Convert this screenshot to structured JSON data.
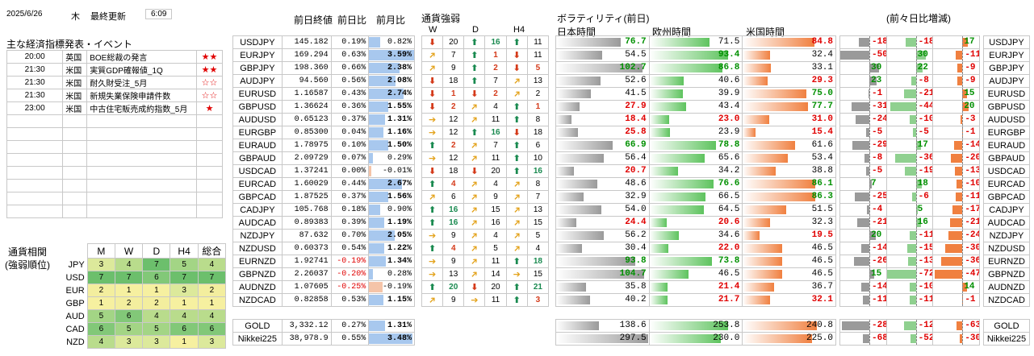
{
  "header": {
    "date": "2025/6/26",
    "weekday": "木",
    "update_label": "最終更新",
    "update_time": "6:09"
  },
  "events": {
    "title": "主な経済指標発表・イベント",
    "rows": [
      {
        "time": "20:00",
        "country": "英国",
        "name": "BOE総裁の発言",
        "stars": "★★"
      },
      {
        "time": "21:30",
        "country": "米国",
        "name": "実質GDP確報値_1Q",
        "stars": "★★"
      },
      {
        "time": "21:30",
        "country": "米国",
        "name": "耐久財受注_5月",
        "stars": "☆☆"
      },
      {
        "time": "21:30",
        "country": "米国",
        "name": "新規失業保険申請件数",
        "stars": "☆☆"
      },
      {
        "time": "23:00",
        "country": "米国",
        "name": "中古住宅販売成約指数_5月",
        "stars": "★"
      }
    ]
  },
  "corr": {
    "title1": "通貨相関",
    "title2": "(強弱順位)",
    "headers": [
      "M",
      "W",
      "D",
      "H4",
      "総合"
    ],
    "rows": [
      {
        "cur": "JPY",
        "vals": [
          "3",
          "4",
          "7",
          "5",
          "4"
        ]
      },
      {
        "cur": "USD",
        "vals": [
          "7",
          "7",
          "6",
          "7",
          "7"
        ]
      },
      {
        "cur": "EUR",
        "vals": [
          "2",
          "1",
          "1",
          "3",
          "2"
        ]
      },
      {
        "cur": "GBP",
        "vals": [
          "1",
          "2",
          "2",
          "1",
          "1"
        ]
      },
      {
        "cur": "AUD",
        "vals": [
          "5",
          "6",
          "4",
          "4",
          "4"
        ]
      },
      {
        "cur": "CAD",
        "vals": [
          "6",
          "5",
          "5",
          "6",
          "6"
        ]
      },
      {
        "cur": "NZD",
        "vals": [
          "4",
          "3",
          "3",
          "1",
          "3"
        ]
      }
    ]
  },
  "price_headers": {
    "close": "前日終値",
    "dchg": "前日比",
    "mchg": "前月比"
  },
  "strength_headers": {
    "title": "通貨強弱",
    "w": "W",
    "d": "D",
    "h4": "H4"
  },
  "vol_headers": {
    "title": "ボラティリティ(前日)",
    "jp": "日本時間",
    "eu": "欧州時間",
    "us": "米国時間",
    "chg": "(前々日比増減)"
  },
  "pairs": [
    {
      "sym": "USDJPY",
      "close": "145.182",
      "d": "0.19%",
      "m": "0.82%",
      "mt": 0.25,
      "s": [
        "dn",
        "20",
        "up",
        "16",
        "up",
        "11"
      ],
      "v": [
        "76.7",
        "71.5",
        "84.8"
      ],
      "vt": [
        "g",
        "n",
        "r"
      ],
      "c": [
        "-18",
        "-18",
        "17"
      ]
    },
    {
      "sym": "EURJPY",
      "close": "169.294",
      "d": "0.63%",
      "m": "3.59%",
      "mt": 1.0,
      "s": [
        "ri",
        "7",
        "up",
        "1",
        "dn",
        "11"
      ],
      "v": [
        "54.5",
        "93.4",
        "32.4"
      ],
      "vt": [
        "n",
        "g",
        "n"
      ],
      "c": [
        "-50",
        "30",
        "-11"
      ]
    },
    {
      "sym": "GBPJPY",
      "close": "198.360",
      "d": "0.66%",
      "m": "2.38%",
      "mt": 0.67,
      "s": [
        "ri",
        "9",
        "up",
        "2",
        "dn",
        "5"
      ],
      "v": [
        "102.7",
        "86.8",
        "33.1"
      ],
      "vt": [
        "g",
        "g",
        "n"
      ],
      "c": [
        "30",
        "22",
        "-9"
      ]
    },
    {
      "sym": "AUDJPY",
      "close": "94.560",
      "d": "0.56%",
      "m": "2.08%",
      "mt": 0.58,
      "s": [
        "dn",
        "18",
        "up",
        "7",
        "ri",
        "13"
      ],
      "v": [
        "52.6",
        "40.6",
        "29.3"
      ],
      "vt": [
        "n",
        "n",
        "r"
      ],
      "c": [
        "23",
        "-8",
        "-9"
      ]
    },
    {
      "sym": "EURUSD",
      "close": "1.16587",
      "d": "0.43%",
      "m": "2.74%",
      "mt": 0.76,
      "s": [
        "dn",
        "1",
        "dn",
        "2",
        "ri",
        "2"
      ],
      "v": [
        "41.5",
        "39.9",
        "75.0"
      ],
      "vt": [
        "n",
        "n",
        "g"
      ],
      "c": [
        "-1",
        "-21",
        "15"
      ]
    },
    {
      "sym": "GBPUSD",
      "close": "1.36624",
      "d": "0.36%",
      "m": "1.55%",
      "mt": 0.43,
      "s": [
        "dn",
        "2",
        "ri",
        "4",
        "up",
        "1"
      ],
      "v": [
        "27.9",
        "43.4",
        "77.7"
      ],
      "vt": [
        "r",
        "n",
        "g"
      ],
      "c": [
        "-31",
        "-44",
        "20"
      ]
    },
    {
      "sym": "AUDUSD",
      "close": "0.65123",
      "d": "0.37%",
      "m": "1.31%",
      "mt": 0.36,
      "s": [
        "rt",
        "12",
        "ri",
        "11",
        "up",
        "8"
      ],
      "v": [
        "18.4",
        "23.0",
        "31.0"
      ],
      "vt": [
        "r",
        "r",
        "r"
      ],
      "c": [
        "-24",
        "-10",
        "-3"
      ]
    },
    {
      "sym": "EURGBP",
      "close": "0.85300",
      "d": "0.04%",
      "m": "1.16%",
      "mt": 0.32,
      "s": [
        "rt",
        "12",
        "up",
        "16",
        "dn",
        "18"
      ],
      "v": [
        "25.8",
        "23.9",
        "15.4"
      ],
      "vt": [
        "r",
        "n",
        "r"
      ],
      "c": [
        "-5",
        "-5",
        "-1"
      ]
    },
    {
      "sym": "EURAUD",
      "close": "1.78975",
      "d": "0.10%",
      "m": "1.50%",
      "mt": 0.42,
      "s": [
        "up",
        "2",
        "ri",
        "7",
        "up",
        "6"
      ],
      "v": [
        "66.9",
        "78.8",
        "61.6"
      ],
      "vt": [
        "g",
        "g",
        "n"
      ],
      "c": [
        "-29",
        "17",
        "-14"
      ]
    },
    {
      "sym": "GBPAUD",
      "close": "2.09729",
      "d": "0.07%",
      "m": "0.29%",
      "mt": 0.08,
      "s": [
        "rt",
        "12",
        "ri",
        "11",
        "up",
        "10"
      ],
      "v": [
        "56.4",
        "65.6",
        "53.4"
      ],
      "vt": [
        "n",
        "n",
        "n"
      ],
      "c": [
        "-8",
        "-36",
        "-20"
      ]
    },
    {
      "sym": "USDCAD",
      "close": "1.37241",
      "d": "0.00%",
      "m": "-0.01%",
      "mt": -0.05,
      "s": [
        "dn",
        "18",
        "dn",
        "20",
        "up",
        "16"
      ],
      "v": [
        "20.7",
        "34.2",
        "38.8"
      ],
      "vt": [
        "r",
        "n",
        "n"
      ],
      "c": [
        "-5",
        "-19",
        "-13"
      ]
    },
    {
      "sym": "EURCAD",
      "close": "1.60029",
      "d": "0.44%",
      "m": "2.67%",
      "mt": 0.74,
      "s": [
        "up",
        "4",
        "ri",
        "4",
        "ri",
        "8"
      ],
      "v": [
        "48.6",
        "76.6",
        "86.1"
      ],
      "vt": [
        "n",
        "g",
        "g"
      ],
      "c": [
        "7",
        "18",
        "-10"
      ]
    },
    {
      "sym": "GBPCAD",
      "close": "1.87525",
      "d": "0.37%",
      "m": "1.56%",
      "mt": 0.43,
      "s": [
        "ri",
        "6",
        "ri",
        "9",
        "ri",
        "7"
      ],
      "v": [
        "32.9",
        "66.5",
        "86.3"
      ],
      "vt": [
        "n",
        "n",
        "g"
      ],
      "c": [
        "-25",
        "-6",
        "-11"
      ]
    },
    {
      "sym": "CADJPY",
      "close": "105.768",
      "d": "0.18%",
      "m": "0.90%",
      "mt": 0.25,
      "s": [
        "up",
        "16",
        "ri",
        "15",
        "ri",
        "13"
      ],
      "v": [
        "54.0",
        "64.5",
        "51.5"
      ],
      "vt": [
        "n",
        "n",
        "n"
      ],
      "c": [
        "-4",
        "5",
        "-17"
      ]
    },
    {
      "sym": "AUDCAD",
      "close": "0.89383",
      "d": "0.39%",
      "m": "1.19%",
      "mt": 0.33,
      "s": [
        "up",
        "16",
        "ri",
        "16",
        "ri",
        "15"
      ],
      "v": [
        "24.4",
        "20.6",
        "32.3"
      ],
      "vt": [
        "r",
        "r",
        "n"
      ],
      "c": [
        "-21",
        "16",
        "-21"
      ]
    },
    {
      "sym": "NZDJPY",
      "close": "87.632",
      "d": "0.70%",
      "m": "2.05%",
      "mt": 0.57,
      "s": [
        "rt",
        "9",
        "ri",
        "4",
        "ri",
        "5"
      ],
      "v": [
        "56.2",
        "34.6",
        "19.5"
      ],
      "vt": [
        "n",
        "n",
        "r"
      ],
      "c": [
        "20",
        "-11",
        "-24"
      ]
    },
    {
      "sym": "NZDUSD",
      "close": "0.60373",
      "d": "0.54%",
      "m": "1.22%",
      "mt": 0.34,
      "s": [
        "up",
        "4",
        "ri",
        "5",
        "ri",
        "4"
      ],
      "v": [
        "30.4",
        "22.0",
        "46.5"
      ],
      "vt": [
        "n",
        "r",
        "n"
      ],
      "c": [
        "-14",
        "-15",
        "-30"
      ]
    },
    {
      "sym": "EURNZD",
      "close": "1.92741",
      "d": "-0.19%",
      "m": "1.34%",
      "mt": 0.37,
      "s": [
        "rt",
        "9",
        "ri",
        "11",
        "up",
        "18"
      ],
      "v": [
        "93.8",
        "73.8",
        "46.5"
      ],
      "vt": [
        "g",
        "g",
        "n"
      ],
      "c": [
        "-26",
        "-13",
        "-36"
      ]
    },
    {
      "sym": "GBPNZD",
      "close": "2.26037",
      "d": "-0.20%",
      "m": "0.28%",
      "mt": 0.08,
      "s": [
        "rt",
        "13",
        "ri",
        "14",
        "rt",
        "15"
      ],
      "v": [
        "104.7",
        "46.5",
        "46.5"
      ],
      "vt": [
        "g",
        "n",
        "n"
      ],
      "c": [
        "15",
        "-72",
        "-47"
      ]
    },
    {
      "sym": "AUDNZD",
      "close": "1.07605",
      "d": "-0.25%",
      "m": "-0.19%",
      "mt": -0.3,
      "s": [
        "up",
        "20",
        "dn",
        "20",
        "up",
        "21"
      ],
      "v": [
        "35.8",
        "21.4",
        "36.7"
      ],
      "vt": [
        "n",
        "r",
        "n"
      ],
      "c": [
        "-14",
        "-10",
        "14"
      ]
    },
    {
      "sym": "NZDCAD",
      "close": "0.82858",
      "d": "0.53%",
      "m": "1.15%",
      "mt": 0.32,
      "s": [
        "ri",
        "9",
        "rt",
        "11",
        "up",
        "3"
      ],
      "v": [
        "40.2",
        "21.7",
        "32.1"
      ],
      "vt": [
        "n",
        "r",
        "r"
      ],
      "c": [
        "-11",
        "-11",
        "-1"
      ]
    }
  ],
  "extras": [
    {
      "sym": "GOLD",
      "close": "3,332.12",
      "d": "0.27%",
      "m": "1.31%",
      "mt": 0.36,
      "v": [
        "138.6",
        "253.8",
        "240.8"
      ],
      "c": [
        "-284",
        "-123",
        "-63"
      ]
    },
    {
      "sym": "Nikkei225",
      "close": "38,978.9",
      "d": "0.55%",
      "m": "3.48%",
      "mt": 0.97,
      "v": [
        "297.5",
        "230.0",
        "225.0"
      ],
      "c": [
        "-68",
        "-52",
        "-30"
      ]
    }
  ],
  "colors": {
    "up": "#1a8a50",
    "down": "#d43a1a",
    "right": "#e3a21a",
    "star": "#e00000",
    "bluebar": "#a8c8ee",
    "salmonbar": "#f5c4a8"
  }
}
